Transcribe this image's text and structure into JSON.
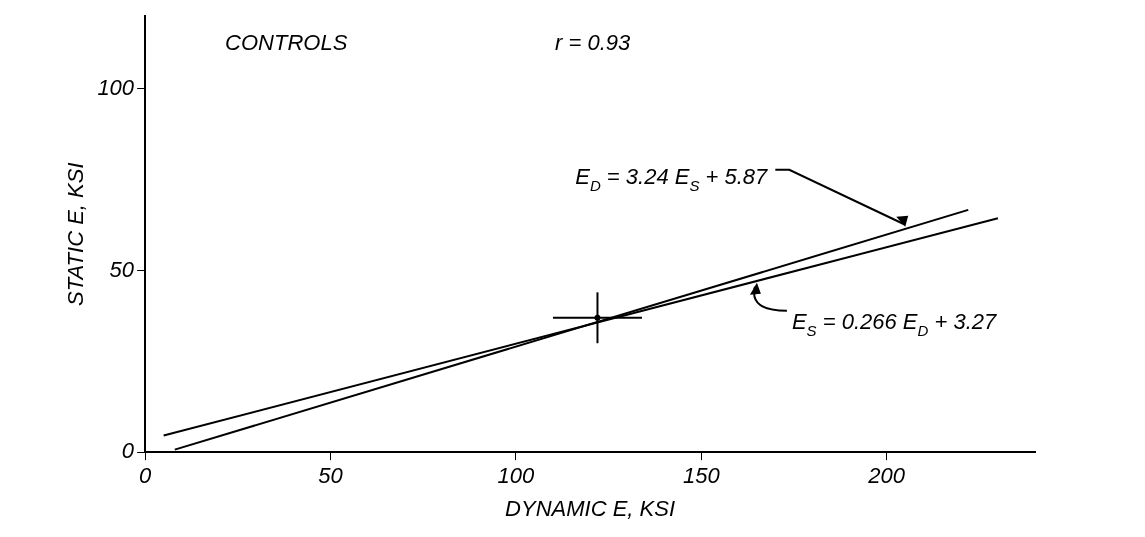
{
  "chart_data": {
    "type": "line",
    "xlabel": "DYNAMIC E, KSI",
    "ylabel": "STATIC E, KSI",
    "xlim": [
      0,
      240
    ],
    "ylim": [
      0,
      120
    ],
    "xticks": [
      0,
      50,
      100,
      150,
      200
    ],
    "yticks": [
      0,
      50,
      100
    ],
    "grid": false,
    "legend": false,
    "line_style": "solid",
    "series": [
      {
        "color": "#000000",
        "marker": "none",
        "x": [
          5,
          230
        ],
        "values": [
          4.6,
          64.4
        ]
      },
      {
        "color": "#000000",
        "marker": "none",
        "x": [
          8,
          222
        ],
        "values": [
          0.7,
          66.7
        ]
      },
      {
        "type": "scatter",
        "color": "#000000",
        "marker": "circle",
        "x": [
          122
        ],
        "values": [
          37
        ],
        "errors": [
          7
        ],
        "xerrors": [
          12
        ]
      }
    ],
    "annotations": [
      "CONTROLS",
      "r = 0.93",
      {
        "text": "E$_{D}$ = 3.24 E$_{S}$ + 5.87",
        "x": 205,
        "y": 61.5
      },
      {
        "text": "E$_{S}$ = 0.266 E$_{D}$ + 3.27",
        "x": 165,
        "y": 47.2
      }
    ]
  }
}
